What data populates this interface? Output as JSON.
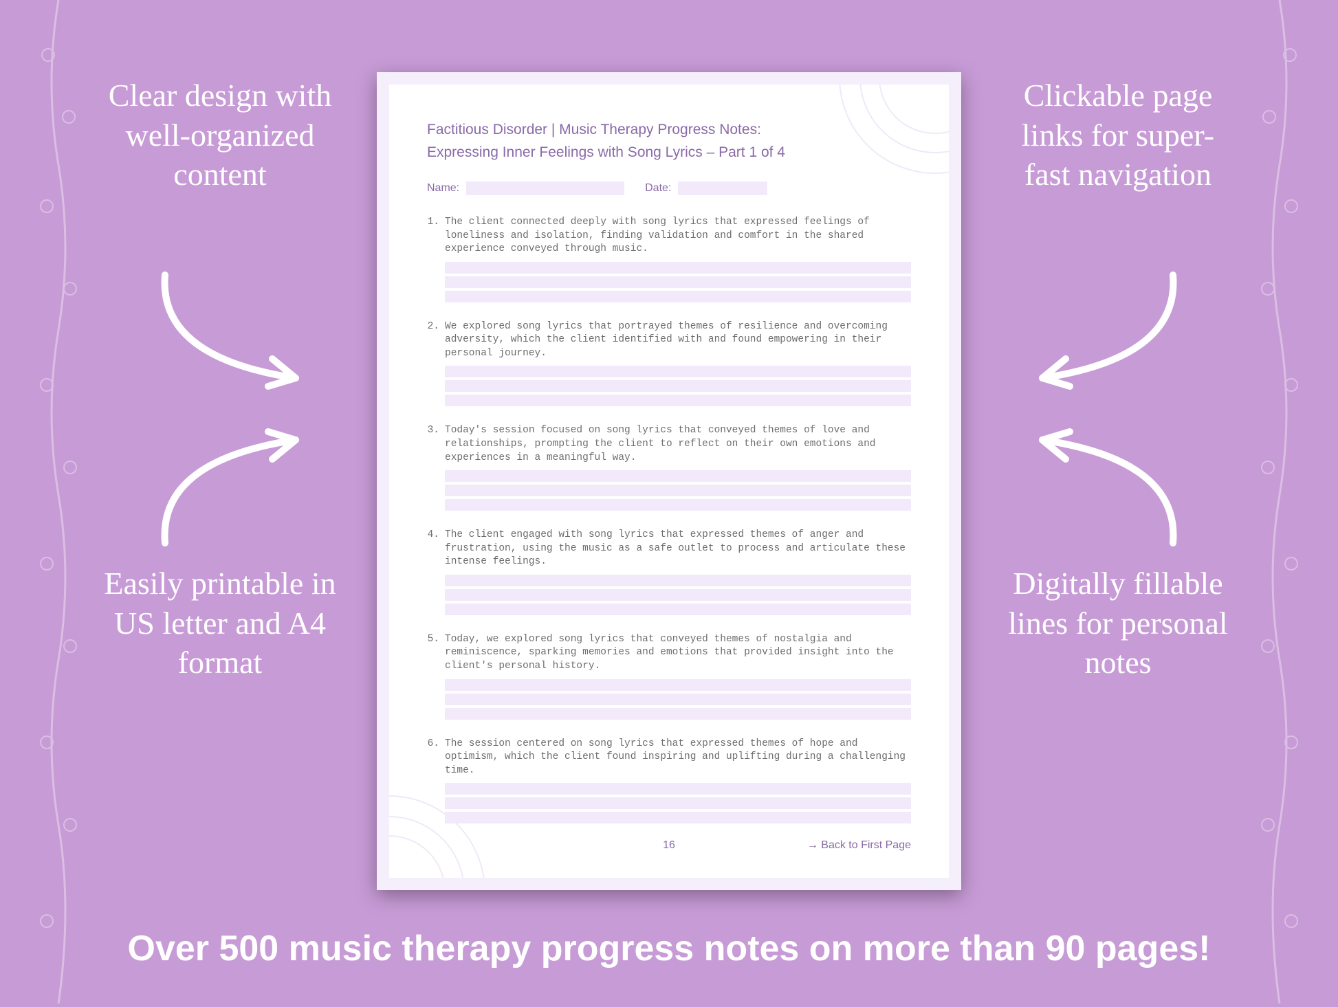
{
  "colors": {
    "background": "#c79bd6",
    "page_border": "#f5eefb",
    "page_bg": "#ffffff",
    "fill_line": "#f2e9fa",
    "heading": "#8a6aa8",
    "note_text": "#6d6d6d",
    "white": "#ffffff",
    "mandala": "#e6dcf2"
  },
  "callouts": {
    "top_left": "Clear design with well-organized content",
    "top_right": "Clickable page links for super-fast navigation",
    "bottom_left": "Easily printable in US letter and A4 format",
    "bottom_right": "Digitally fillable lines for personal notes"
  },
  "banner": "Over 500 music therapy progress notes on more than 90 pages!",
  "page": {
    "title_line1": "Factitious Disorder | Music Therapy Progress Notes:",
    "title_line2": "Expressing Inner Feelings with Song Lyrics – Part 1 of 4",
    "name_label": "Name:",
    "date_label": "Date:",
    "page_number": "16",
    "back_link": "→ Back to First Page",
    "fill_lines_per_note": 3,
    "notes": [
      "The client connected deeply with song lyrics that expressed feelings of loneliness and isolation, finding validation and comfort in the shared experience conveyed through music.",
      "We explored song lyrics that portrayed themes of resilience and overcoming adversity, which the client identified with and found empowering in their personal journey.",
      "Today's session focused on song lyrics that conveyed themes of love and relationships, prompting the client to reflect on their own emotions and experiences in a meaningful way.",
      "The client engaged with song lyrics that expressed themes of anger and frustration, using the music as a safe outlet to process and articulate these intense feelings.",
      "Today, we explored song lyrics that conveyed themes of nostalgia and reminiscence, sparking memories and emotions that provided insight into the client's personal history.",
      "The session centered on song lyrics that expressed themes of hope and optimism, which the client found inspiring and uplifting during a challenging time."
    ]
  }
}
